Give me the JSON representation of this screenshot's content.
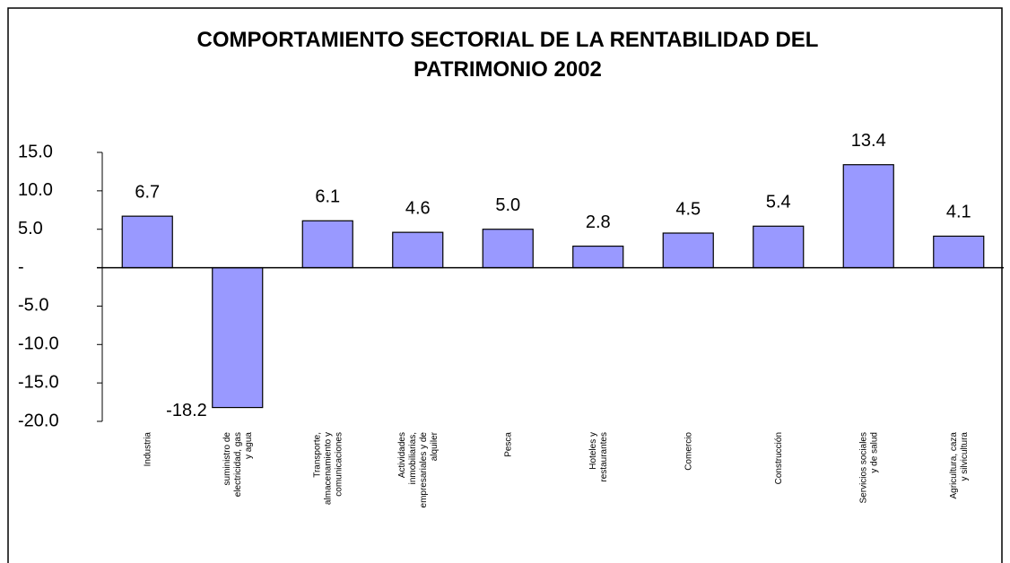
{
  "chart_data": {
    "type": "bar",
    "title": "COMPORTAMIENTO SECTORIAL DE LA RENTABILIDAD DEL PATRIMONIO 2002",
    "categories": [
      "Industria",
      "suministro de electricidad, gas y agua",
      "Transporte, almacenamiento y comunicaciones",
      "Actividades inmobiliarias, empresariales y de alquiler",
      "Pesca",
      "Hoteles y restaurantes",
      "Comercio",
      "Construcción",
      "Servicios sociales y de salud",
      "Agricultura, caza y silvicultura"
    ],
    "values": [
      6.7,
      -18.2,
      6.1,
      4.6,
      5.0,
      2.8,
      4.5,
      5.4,
      13.4,
      4.1
    ],
    "value_labels": [
      "6.7",
      "-18.2",
      "6.1",
      "4.6",
      "5.0",
      "2.8",
      "4.5",
      "5.4",
      "13.4",
      "4.1"
    ],
    "color": "#9999ff",
    "ylim": [
      -20,
      15
    ],
    "yticks": [
      {
        "value": -20,
        "label": "-20.0"
      },
      {
        "value": -15,
        "label": "-15.0"
      },
      {
        "value": -10,
        "label": "-10.0"
      },
      {
        "value": -5,
        "label": "-5.0"
      },
      {
        "value": 0,
        "label": "-"
      },
      {
        "value": 5,
        "label": "5.0"
      },
      {
        "value": 10,
        "label": "10.0"
      },
      {
        "value": 15,
        "label": "15.0"
      }
    ]
  }
}
